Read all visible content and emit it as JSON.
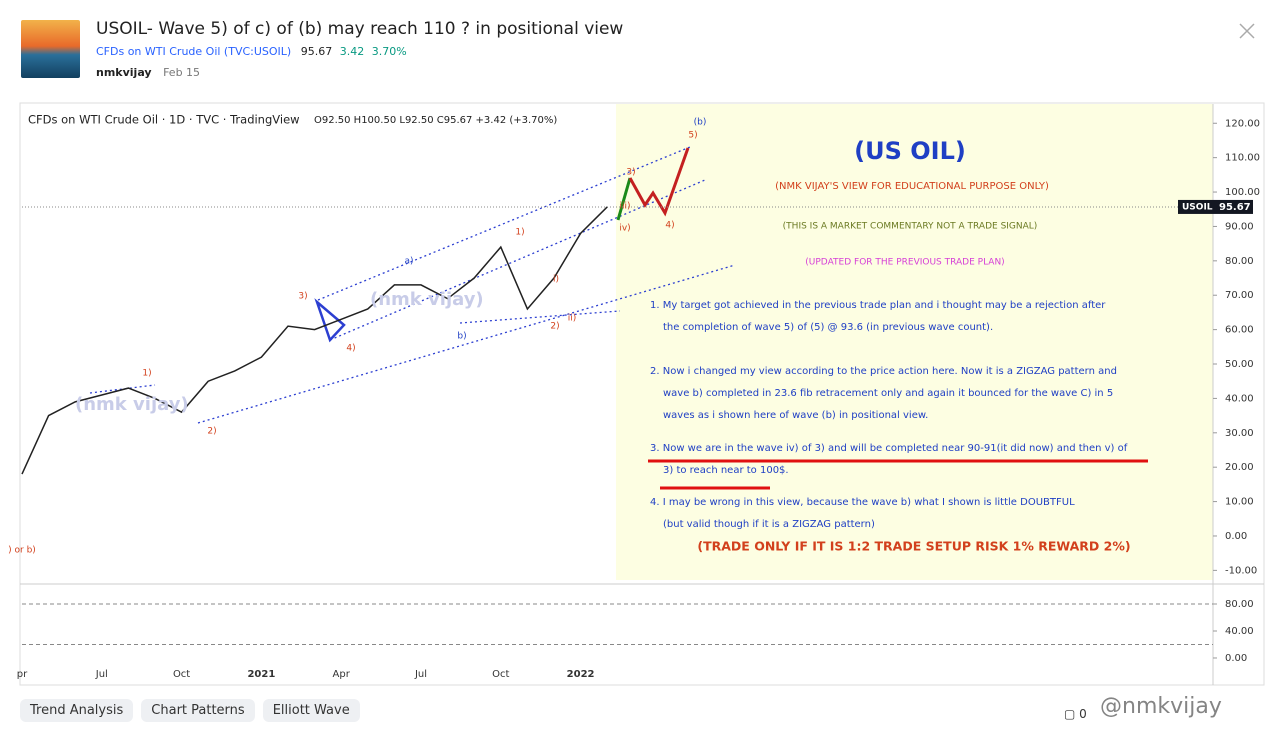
{
  "header": {
    "title": "USOIL- Wave 5) of c) of (b) may reach 110 ? in positional view",
    "symbol_name": "CFDs on WTI Crude Oil (TVC:USOIL)",
    "price": 95.67,
    "change": 3.42,
    "change_pct": "3.70%",
    "author": "nmkvijay",
    "date": "Feb 15"
  },
  "chart_data": {
    "type": "line",
    "title": "CFDs on WTI Crude Oil · 1D · TVC · TradingView",
    "ohlc": "O92.50 H100.50 L92.50 C95.67 +3.42 (+3.70%)",
    "color": "#222222",
    "categories": [
      "pr",
      null,
      null,
      "Jul",
      null,
      null,
      "Oct",
      null,
      null,
      "2021",
      null,
      null,
      "Apr",
      null,
      null,
      "Jul",
      null,
      null,
      "Oct",
      null,
      null,
      "2022",
      null
    ],
    "values": [
      18,
      35,
      39,
      41,
      43,
      40,
      36,
      45,
      48,
      52,
      61,
      60,
      63,
      66,
      73,
      73,
      69,
      75,
      84,
      66,
      75,
      88,
      95.67
    ],
    "ylim": [
      -12.8,
      125.6
    ],
    "yticks": [
      {
        "value": 120,
        "label": "120.00"
      },
      {
        "value": 110,
        "label": "110.00"
      },
      {
        "value": 100,
        "label": "100.00"
      },
      {
        "value": 90,
        "label": "90.00"
      },
      {
        "value": 80,
        "label": "80.00"
      },
      {
        "value": 70,
        "label": "70.00"
      },
      {
        "value": 60,
        "label": "60.00"
      },
      {
        "value": 50,
        "label": "50.00"
      },
      {
        "value": 40,
        "label": "40.00"
      },
      {
        "value": 30,
        "label": "30.00"
      },
      {
        "value": 20,
        "label": "20.00"
      },
      {
        "value": 10,
        "label": "10.00"
      },
      {
        "value": 0,
        "label": "0.00"
      },
      {
        "value": -10,
        "label": "-10.00"
      }
    ],
    "price_label": {
      "symbol": "USOIL",
      "value": 95.67
    },
    "watermark": "(nmk vijay)",
    "annotations": [
      {
        "text": "(US OIL)",
        "color": "#1f3fc4"
      },
      {
        "text": "(NMK VIJAY'S VIEW FOR EDUCATIONAL PURPOSE ONLY)",
        "color": "#d2401c"
      },
      {
        "text": "(THIS IS A MARKET COMMENTARY NOT A TRADE SIGNAL)",
        "color": "#6b7a22"
      },
      {
        "text": "(UPDATED FOR THE PREVIOUS TRADE PLAN)",
        "color": "#d63fd6"
      },
      {
        "text": "1. My target got achieved in the previous trade plan and i thought may be a rejection after",
        "color": "#1f3fc4"
      },
      {
        "text": "the completion of wave 5) of (5) @ 93.6 (in previous wave count).",
        "color": "#1f3fc4"
      },
      {
        "text": "2. Now i changed my view according to the price action here. Now it is a ZIGZAG pattern and",
        "color": "#1f3fc4"
      },
      {
        "text": "wave b) completed in 23.6 fib retracement only and again it bounced for the wave C) in 5",
        "color": "#1f3fc4"
      },
      {
        "text": "waves as i shown here of wave (b) in positional view.",
        "color": "#1f3fc4"
      },
      {
        "text": "3. Now we are in the wave iv) of 3) and will be completed near 90-91(it did now) and then v) of",
        "color": "#1f3fc4"
      },
      {
        "text": "3) to reach near to 100$.",
        "color": "#1f3fc4"
      },
      {
        "text": "4. I may be wrong in this view, because the wave b) what I shown is little DOUBTFUL",
        "color": "#1f3fc4"
      },
      {
        "text": "(but valid though if it is a ZIGZAG pattern)",
        "color": "#1f3fc4"
      },
      {
        "text": "(TRADE ONLY IF IT IS 1:2 TRADE SETUP RISK 1% REWARD 2%)",
        "color": "#d2401c"
      }
    ],
    "wave_labels": [
      {
        "text": "(b)",
        "color": "#1f3fc4"
      },
      {
        "text": "5)",
        "color": "#d2401c"
      },
      {
        "text": "3)",
        "color": "#d2401c"
      },
      {
        "text": "iii)",
        "color": "#d2401c"
      },
      {
        "text": "iv)",
        "color": "#d2401c"
      },
      {
        "text": "4)",
        "color": "#d2401c"
      },
      {
        "text": "1)",
        "color": "#d2401c"
      },
      {
        "text": "i)",
        "color": "#d2401c"
      },
      {
        "text": "ii)",
        "color": "#d2401c"
      },
      {
        "text": "2)",
        "color": "#d2401c"
      },
      {
        "text": "a)",
        "color": "#1f3fc4"
      },
      {
        "text": "b)",
        "color": "#1f3fc4"
      },
      {
        "text": "3)",
        "color": "#d2401c"
      },
      {
        "text": "4)",
        "color": "#d2401c"
      },
      {
        "text": "1)",
        "color": "#d2401c"
      },
      {
        "text": "2)",
        "color": "#d2401c"
      },
      {
        "text": ") or b)",
        "color": "#d2401c"
      }
    ]
  },
  "oscillator": {
    "ylim": [
      -10.4,
      103.7
    ],
    "yticks": [
      {
        "value": 80,
        "label": "80.00"
      },
      {
        "value": 40,
        "label": "40.00"
      },
      {
        "value": 0,
        "label": "0.00"
      }
    ],
    "levels": [
      80,
      20
    ]
  },
  "tags": [
    "Trend Analysis",
    "Chart Patterns",
    "Elliott Wave"
  ],
  "comments": 0,
  "watermark": "@nmkvijay"
}
